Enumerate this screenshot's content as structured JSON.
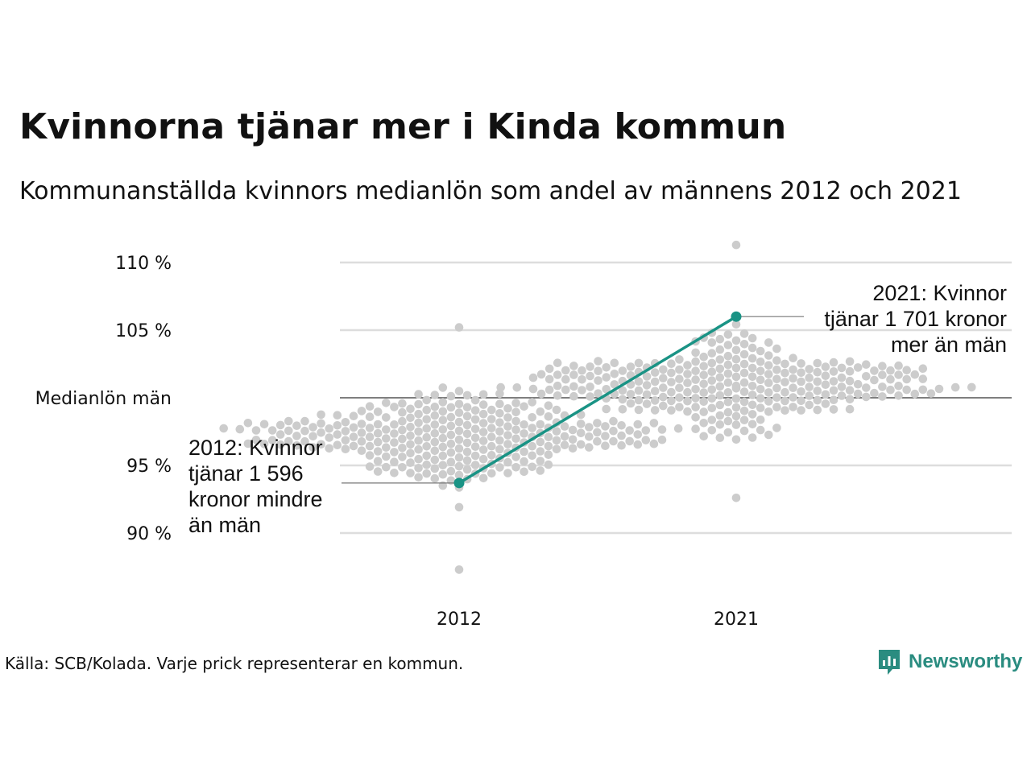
{
  "header": {
    "title": "Kvinnorna tjänar mer i Kinda kommun",
    "subtitle": "Kommunanställda kvinnors medianlön som andel av männens 2012 och 2021"
  },
  "footer": {
    "source": "Källa: SCB/Kolada. Varje prick representerar en kommun.",
    "brand": "Newsworthy",
    "brand_icon": "bar-chart-logo-icon"
  },
  "colors": {
    "accent": "#1a9385",
    "dots": "#cccccc",
    "grid": "#dddddd",
    "reference_line": "#333333"
  },
  "annotations": {
    "y2012": [
      "2012: Kvinnor",
      "tjänar 1 596",
      "kronor mindre",
      "än män"
    ],
    "y2021": [
      "2021: Kvinnor",
      "tjänar 1 701 kronor",
      "mer än män"
    ]
  },
  "chart_data": {
    "type": "scatter",
    "subtype": "beeswarm-with-highlight-line",
    "categories": [
      "2012",
      "2021"
    ],
    "ylim": [
      86,
      111
    ],
    "yticks": [
      {
        "value": 110,
        "label": "110 %"
      },
      {
        "value": 105,
        "label": "105 %"
      },
      {
        "value": 100,
        "label": "Medianlön män"
      },
      {
        "value": 95,
        "label": "95 %"
      },
      {
        "value": 90,
        "label": "90 %"
      }
    ],
    "grid": true,
    "highlight": {
      "values": [
        93.7,
        106.0
      ]
    },
    "distribution": {
      "2012": {
        "min": 87.3,
        "max": 105.2,
        "center": 97.0,
        "spread": 2.0
      },
      "2021": {
        "min": 92.6,
        "max": 111.3,
        "center": 101.0,
        "spread": 2.2
      }
    }
  }
}
